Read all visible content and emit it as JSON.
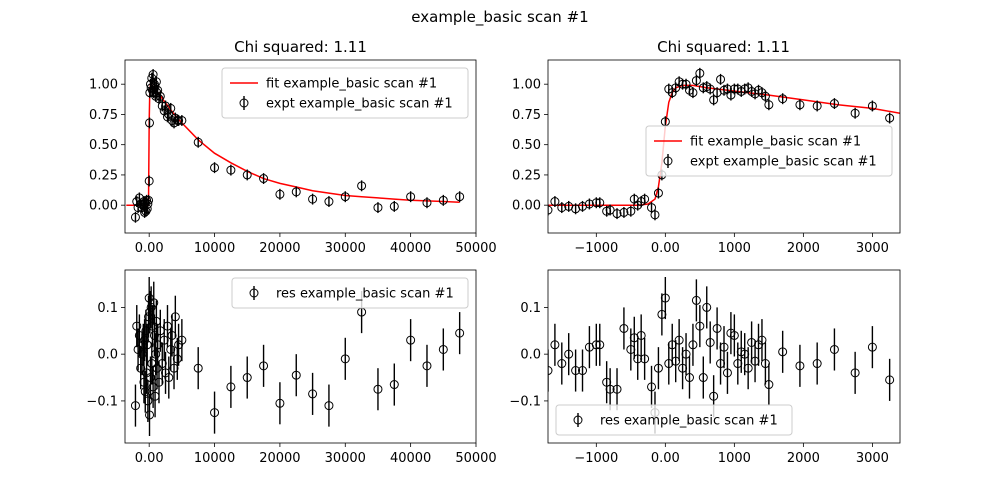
{
  "figure": {
    "suptitle": "example_basic scan #1"
  },
  "chart_data": [
    {
      "type": "scatter",
      "title": "Chi squared:  1.11",
      "xlim": [
        -3700,
        50000
      ],
      "ylim": [
        -0.23,
        1.2
      ],
      "xticks": [
        0,
        10000,
        20000,
        30000,
        40000,
        50000
      ],
      "yticks": [
        0.0,
        0.25,
        0.5,
        0.75,
        1.0
      ],
      "legend_position": "upper-right",
      "fit": {
        "name": "fit example_basic scan #1",
        "color": "#ff0000",
        "x": [
          -3500,
          -100,
          0,
          100,
          200,
          400,
          700,
          1000,
          1500,
          2000,
          3000,
          4000,
          5000,
          7500,
          10000,
          12500,
          15000,
          17500,
          20000,
          22500,
          25000,
          27500,
          30000,
          32500,
          35000,
          37500,
          40000,
          42500,
          45000,
          47500
        ],
        "y": [
          0.0,
          0.0,
          0.7,
          0.95,
          1.0,
          0.99,
          0.97,
          0.95,
          0.92,
          0.88,
          0.81,
          0.74,
          0.68,
          0.54,
          0.43,
          0.35,
          0.28,
          0.22,
          0.18,
          0.15,
          0.12,
          0.1,
          0.08,
          0.07,
          0.06,
          0.05,
          0.04,
          0.035,
          0.03,
          0.025
        ]
      },
      "expt": {
        "name": "expt example_basic scan #1",
        "x": [
          -2100,
          -1900,
          -1700,
          -1500,
          -1300,
          -1100,
          -900,
          -800,
          -700,
          -600,
          -500,
          -400,
          -300,
          -200,
          -100,
          0,
          50,
          100,
          200,
          300,
          400,
          500,
          600,
          700,
          800,
          900,
          1000,
          1100,
          1200,
          1300,
          1500,
          1700,
          2000,
          2300,
          2500,
          2800,
          3000,
          3300,
          3500,
          3800,
          4000,
          4300,
          4500,
          5000,
          7500,
          10000,
          12500,
          15000,
          17500,
          20000,
          22500,
          25000,
          27500,
          30000,
          32500,
          35000,
          37500,
          40000,
          42500,
          45000,
          47500
        ],
        "y": [
          -0.1,
          0.03,
          -0.02,
          0.06,
          0.01,
          -0.02,
          0.0,
          0.03,
          -0.06,
          0.02,
          -0.05,
          0.04,
          -0.03,
          0.01,
          0.04,
          0.2,
          0.68,
          0.93,
          1.0,
          0.97,
          1.05,
          0.95,
          1.08,
          0.93,
          1.0,
          0.98,
          0.9,
          1.02,
          0.93,
          0.95,
          0.88,
          0.9,
          0.82,
          0.78,
          0.82,
          0.73,
          0.75,
          0.8,
          0.7,
          0.68,
          0.72,
          0.7,
          0.7,
          0.7,
          0.52,
          0.31,
          0.29,
          0.25,
          0.22,
          0.09,
          0.11,
          0.05,
          0.03,
          0.07,
          0.16,
          -0.02,
          -0.01,
          0.07,
          0.02,
          0.04,
          0.07
        ],
        "err": 0.045
      }
    },
    {
      "type": "scatter",
      "title": "Chi squared:  1.11",
      "xlim": [
        -1700,
        3400
      ],
      "ylim": [
        -0.23,
        1.2
      ],
      "xticks": [
        -1000,
        0,
        1000,
        2000,
        3000
      ],
      "yticks": [
        0.0,
        0.25,
        0.5,
        0.75,
        1.0
      ],
      "legend_position": "center-right",
      "fit": {
        "name": "fit example_basic scan #1",
        "color": "#ff0000",
        "x": [
          -1700,
          -400,
          -250,
          -150,
          -100,
          -50,
          0,
          50,
          100,
          150,
          250,
          400,
          600,
          900,
          1200,
          1500,
          2000,
          2500,
          3000,
          3400
        ],
        "y": [
          0.0,
          0.0,
          0.01,
          0.05,
          0.15,
          0.35,
          0.65,
          0.85,
          0.93,
          0.97,
          0.99,
          0.99,
          0.97,
          0.95,
          0.93,
          0.91,
          0.87,
          0.83,
          0.8,
          0.76
        ]
      },
      "expt": {
        "name": "expt example_basic scan #1",
        "x": [
          -1700,
          -1600,
          -1500,
          -1400,
          -1300,
          -1200,
          -1100,
          -1000,
          -950,
          -850,
          -800,
          -700,
          -600,
          -500,
          -450,
          -400,
          -350,
          -300,
          -200,
          -150,
          -100,
          -50,
          0,
          50,
          100,
          150,
          200,
          250,
          300,
          350,
          400,
          450,
          500,
          550,
          600,
          650,
          700,
          750,
          800,
          850,
          900,
          950,
          1000,
          1050,
          1100,
          1150,
          1200,
          1250,
          1300,
          1350,
          1400,
          1450,
          1500,
          1700,
          1950,
          2200,
          2450,
          2750,
          3000,
          3250
        ],
        "y": [
          -0.04,
          0.03,
          -0.02,
          -0.01,
          -0.03,
          -0.01,
          0.01,
          0.02,
          0.02,
          -0.05,
          -0.04,
          -0.07,
          -0.06,
          -0.05,
          0.05,
          0.0,
          0.03,
          0.05,
          -0.02,
          -0.08,
          0.1,
          0.25,
          0.69,
          0.96,
          0.93,
          0.97,
          1.02,
          1.0,
          1.0,
          0.95,
          0.93,
          1.03,
          1.09,
          0.97,
          0.98,
          0.96,
          0.87,
          0.93,
          1.04,
          0.95,
          0.96,
          0.91,
          0.96,
          0.96,
          0.94,
          0.96,
          0.97,
          0.94,
          0.92,
          0.95,
          0.93,
          0.9,
          0.83,
          0.88,
          0.83,
          0.82,
          0.84,
          0.76,
          0.82,
          0.72
        ],
        "err": 0.045
      }
    },
    {
      "type": "scatter",
      "title": "",
      "xlim": [
        -3700,
        50000
      ],
      "ylim": [
        -0.19,
        0.18
      ],
      "xticks": [
        0,
        10000,
        20000,
        30000,
        40000,
        50000
      ],
      "yticks": [
        -0.1,
        0.0,
        0.1
      ],
      "ytick_labels": [
        "−0.1",
        "0.0",
        "0.1"
      ],
      "legend_position": "upper-right",
      "res": {
        "name": "res example_basic scan #1",
        "x": [
          -2100,
          -1900,
          -1700,
          -1500,
          -1300,
          -1100,
          -900,
          -800,
          -700,
          -600,
          -500,
          -400,
          -300,
          -200,
          -100,
          0,
          50,
          100,
          200,
          300,
          400,
          500,
          600,
          700,
          800,
          900,
          1000,
          1100,
          1200,
          1300,
          1500,
          1700,
          2000,
          2300,
          2500,
          2800,
          3000,
          3300,
          3500,
          3800,
          4000,
          4300,
          4500,
          5000,
          7500,
          10000,
          12500,
          15000,
          17500,
          20000,
          22500,
          25000,
          27500,
          30000,
          32500,
          35000,
          37500,
          40000,
          42500,
          45000,
          47500
        ],
        "y": [
          -0.11,
          0.06,
          0.01,
          0.04,
          -0.03,
          0.0,
          0.02,
          -0.06,
          0.03,
          -0.08,
          0.05,
          -0.04,
          0.02,
          -0.1,
          0.08,
          0.12,
          -0.13,
          0.09,
          -0.05,
          0.1,
          -0.02,
          0.06,
          -0.07,
          0.11,
          0.04,
          -0.09,
          0.0,
          0.07,
          -0.03,
          0.02,
          -0.06,
          0.05,
          -0.02,
          0.03,
          -0.04,
          0.06,
          -0.05,
          0.01,
          0.04,
          -0.03,
          0.08,
          -0.01,
          0.02,
          0.03,
          -0.03,
          -0.125,
          -0.07,
          -0.05,
          -0.025,
          -0.105,
          -0.045,
          -0.085,
          -0.11,
          -0.01,
          0.09,
          -0.075,
          -0.065,
          0.03,
          -0.025,
          0.01,
          0.045
        ],
        "err": 0.045
      }
    },
    {
      "type": "scatter",
      "title": "",
      "xlim": [
        -1700,
        3400
      ],
      "ylim": [
        -0.19,
        0.18
      ],
      "xticks": [
        -1000,
        0,
        1000,
        2000,
        3000
      ],
      "yticks": [
        -0.1,
        0.0,
        0.1
      ],
      "ytick_labels": [
        "−0.1",
        "0.0",
        "0.1"
      ],
      "legend_position": "lower-left",
      "res": {
        "name": "res example_basic scan #1",
        "x": [
          -1700,
          -1600,
          -1500,
          -1400,
          -1300,
          -1200,
          -1100,
          -1000,
          -950,
          -850,
          -800,
          -700,
          -600,
          -500,
          -450,
          -400,
          -350,
          -300,
          -200,
          -150,
          -100,
          -50,
          0,
          50,
          100,
          150,
          200,
          250,
          300,
          350,
          400,
          450,
          500,
          550,
          600,
          650,
          700,
          750,
          800,
          850,
          900,
          950,
          1000,
          1050,
          1100,
          1150,
          1200,
          1250,
          1300,
          1350,
          1400,
          1450,
          1500,
          1700,
          1950,
          2200,
          2450,
          2750,
          3000,
          3250
        ],
        "y": [
          -0.035,
          0.02,
          -0.02,
          0.0,
          -0.035,
          -0.035,
          0.015,
          0.02,
          0.02,
          -0.06,
          -0.075,
          -0.075,
          0.055,
          0.01,
          0.035,
          -0.01,
          0.04,
          -0.01,
          -0.07,
          -0.125,
          -0.03,
          0.085,
          0.12,
          -0.02,
          0.02,
          -0.015,
          0.03,
          -0.03,
          0.0,
          -0.05,
          0.02,
          0.115,
          0.06,
          -0.05,
          0.1,
          0.025,
          -0.09,
          0.055,
          -0.02,
          0.015,
          -0.04,
          0.045,
          0.04,
          -0.02,
          0.005,
          0.0,
          -0.03,
          0.025,
          -0.015,
          0.02,
          0.03,
          -0.02,
          -0.065,
          0.005,
          -0.025,
          -0.02,
          0.01,
          -0.04,
          0.015,
          -0.055
        ],
        "err": 0.045
      }
    }
  ]
}
